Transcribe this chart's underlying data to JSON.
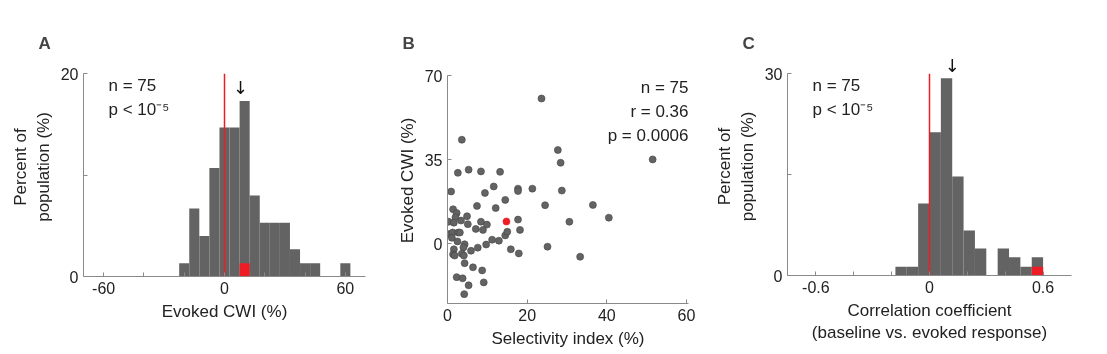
{
  "chart_data": [
    {
      "type": "histogram",
      "title": "A",
      "xlabel": "Evoked CWI (%)",
      "ylabel": "Percent of\npopulation (%)",
      "bins": [
        -22.5,
        -17.5,
        -12.5,
        -7.5,
        -2.5,
        2.5,
        7.5,
        12.5,
        17.5,
        22.5,
        27.5,
        32.5,
        37.5,
        42.5,
        47.5,
        52.5,
        57.5,
        62.5
      ],
      "series": [
        {
          "color": "#636363",
          "values": [
            1.3,
            6.7,
            4.0,
            10.7,
            14.7,
            14.7,
            17.3,
            8.0,
            5.3,
            5.3,
            5.3,
            2.7,
            1.3,
            1.3,
            0,
            0,
            1.3
          ]
        },
        {
          "color": "#ee1c25",
          "values": [
            0,
            0,
            0,
            0,
            0,
            0,
            1.3,
            0,
            0,
            0,
            0,
            0,
            0,
            0,
            0,
            0,
            0
          ]
        }
      ],
      "xlim": [
        -70,
        70
      ],
      "xticks": [
        -60,
        {
          "value": -40,
          "label": null
        },
        {
          "value": -20,
          "label": null
        },
        0,
        {
          "value": 20,
          "label": null
        },
        {
          "value": 40,
          "label": null
        },
        60
      ],
      "ylim": [
        0,
        20
      ],
      "yticks": [
        0,
        {
          "value": 10,
          "label": null
        },
        20
      ],
      "ref_lines": [
        {
          "axis": "x",
          "value": 0,
          "label": null,
          "color": "#ee1c25"
        }
      ],
      "annotations": [
        "n = 75",
        "p < 10⁻⁵",
        {
          "text": "↓",
          "x": 8,
          "y": 17.6
        }
      ],
      "grid": false
    },
    {
      "type": "scatter",
      "title": "B",
      "xlabel": "Selectivity index (%)",
      "ylabel": "Evoked CWI (%)",
      "marker": "circle",
      "series": [
        {
          "color": "#636363",
          "x": [
            23.6,
            3.6,
            27.7,
            28.4,
            51.5,
            2.6,
            5.3,
            8.4,
            13.2,
            11.6,
            0.9,
            9.4,
            17.7,
            17.7,
            21.3,
            28.7,
            14.5,
            7.4,
            12.1,
            24.5,
            36.5,
            40.5,
            1.4,
            2.3,
            2.0,
            4.9,
            0.3,
            1.6,
            3.4,
            5.1,
            8.4,
            9.9,
            7.1,
            8.9,
            17.7,
            30.6,
            18.2,
            0.4,
            1.3,
            1.1,
            2.7,
            3.1,
            2.5,
            4.3,
            4.0,
            3.6,
            1.6,
            1.4,
            1.8,
            4.1,
            5.9,
            7.6,
            9.7,
            11.2,
            12.9,
            14.5,
            15.0,
            15.9,
            17.9,
            25.1,
            33.3,
            4.3,
            6.4,
            8.7,
            2.3,
            3.8,
            9.1,
            5.3,
            4.2
          ],
          "values": [
            60.5,
            43.3,
            39.0,
            33.7,
            35.1,
            29.5,
            30.8,
            30.1,
            29.9,
            23.8,
            21.7,
            21.1,
            22.9,
            21.9,
            22.9,
            22.1,
            18.2,
            15.7,
            14.8,
            16.0,
            16.1,
            10.8,
            14.3,
            12.7,
            11.0,
            11.4,
            9.1,
            8.7,
            9.6,
            8.1,
            9.1,
            7.9,
            6.1,
            5.7,
            10.0,
            9.1,
            5.7,
            4.0,
            4.6,
            2.4,
            4.6,
            4.6,
            0.9,
            -0.3,
            -1.6,
            -4.2,
            -2.4,
            -4.5,
            -5.0,
            -5.0,
            -3.0,
            -1.7,
            -0.4,
            1.6,
            1.2,
            3.4,
            4.9,
            -2.4,
            -4.1,
            -1.3,
            -5.5,
            -8.2,
            -9.9,
            -11.2,
            -14.0,
            -14.5,
            -16.2,
            -17.4,
            -21.1
          ]
        },
        {
          "color": "#ee1c25",
          "x": [
            14.8
          ],
          "values": [
            9.2
          ]
        }
      ],
      "xlim": [
        0,
        60.5
      ],
      "xticks": [
        0,
        20,
        40,
        60
      ],
      "ylim": [
        -25,
        70
      ],
      "yticks": [
        0,
        35,
        70
      ],
      "annotations": [
        "n = 75",
        "r = 0.36",
        "p = 0.0006"
      ],
      "grid": false
    },
    {
      "type": "histogram",
      "title": "C",
      "xlabel": "Correlation coefficient\n(baseline vs. evoked response)",
      "ylabel": "Percent of\npopulation (%)",
      "bins": [
        -0.18,
        -0.12,
        -0.06,
        0,
        0.06,
        0.12,
        0.18,
        0.24,
        0.3,
        0.36,
        0.42,
        0.48,
        0.54,
        0.6
      ],
      "series": [
        {
          "color": "#636363",
          "values": [
            1.3,
            1.3,
            10.7,
            21.3,
            29.3,
            14.7,
            6.7,
            4.0,
            0,
            4.0,
            2.7,
            1.3,
            2.7
          ]
        },
        {
          "color": "#ee1c25",
          "values": [
            0,
            0,
            0,
            0,
            0,
            0,
            0,
            0,
            0,
            0,
            0,
            0,
            1.3
          ]
        }
      ],
      "xlim": [
        -0.75,
        0.75
      ],
      "xticks": [
        -0.6,
        {
          "value": -0.4,
          "label": null
        },
        {
          "value": -0.2,
          "label": null
        },
        0,
        {
          "value": 0.2,
          "label": null
        },
        {
          "value": 0.4,
          "label": null
        },
        0.6
      ],
      "ylim": [
        0,
        30
      ],
      "yticks": [
        0,
        {
          "value": 15,
          "label": null
        },
        30
      ],
      "ref_lines": [
        {
          "axis": "x",
          "value": 0,
          "label": null,
          "color": "#ee1c25"
        }
      ],
      "annotations": [
        "n = 75",
        "p < 10⁻⁵",
        {
          "text": "↓",
          "x": 0.12,
          "y": 29.6
        }
      ],
      "grid": false
    }
  ]
}
